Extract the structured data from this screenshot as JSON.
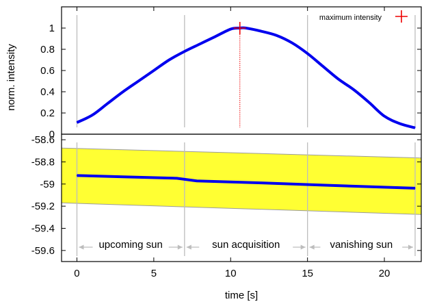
{
  "chart_data": [
    {
      "type": "line",
      "ylabel": "norm. intensity",
      "xlim": [
        -1,
        22.4
      ],
      "ylim": [
        0,
        1.2
      ],
      "yticks": [
        "0",
        "0.2",
        "0.4",
        "0.6",
        "0.8",
        "1"
      ],
      "phase_boundaries": [
        0,
        7,
        15,
        22
      ],
      "legend": {
        "label": "maximum intensity",
        "marker": "+",
        "placement": "top-right"
      },
      "series": [
        {
          "color": "#0000ee",
          "x": [
            0,
            1,
            2,
            3,
            4,
            5,
            6,
            7,
            8,
            9,
            10,
            10.6,
            11,
            12,
            13,
            14,
            15,
            16,
            17,
            18,
            19,
            20,
            21,
            22
          ],
          "y": [
            0.11,
            0.18,
            0.29,
            0.4,
            0.5,
            0.6,
            0.7,
            0.78,
            0.85,
            0.92,
            0.99,
            1.0,
            1.0,
            0.97,
            0.93,
            0.86,
            0.76,
            0.64,
            0.52,
            0.42,
            0.3,
            0.17,
            0.1,
            0.06
          ]
        }
      ],
      "marker_point": {
        "x": 10.6,
        "y": 1.0,
        "color": "#ee0000"
      }
    },
    {
      "type": "line",
      "xlabel": "time [s]",
      "xlim": [
        -1,
        22.4
      ],
      "ylim": [
        -59.7,
        -58.55
      ],
      "xticks": [
        "0",
        "5",
        "10",
        "15",
        "20"
      ],
      "yticks": [
        "-58.6",
        "-58.8",
        "-59",
        "-59.2",
        "-59.4",
        "-59.6"
      ],
      "band": {
        "color": "#ffff33",
        "x": [
          -1,
          22.4
        ],
        "upper": [
          -58.675,
          -58.765
        ],
        "lower": [
          -59.17,
          -59.275
        ]
      },
      "series": [
        {
          "color": "#0000ee",
          "x": [
            0,
            3,
            6.5,
            7.8,
            12,
            16,
            22
          ],
          "y": [
            -58.923,
            -58.935,
            -58.948,
            -58.972,
            -58.99,
            -59.01,
            -59.038
          ]
        }
      ],
      "annotations": [
        {
          "text": "upcoming sun",
          "from": 0,
          "to": 7
        },
        {
          "text": "sun acquisition",
          "from": 7,
          "to": 15
        },
        {
          "text": "vanishing sun",
          "from": 15,
          "to": 22
        }
      ]
    }
  ]
}
